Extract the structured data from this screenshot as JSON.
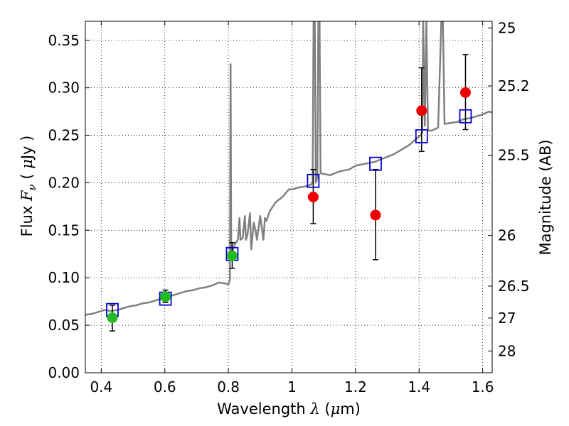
{
  "chart_data": {
    "type": "scatter",
    "title": "",
    "xlabel": {
      "prefix": "Wavelength  ",
      "symbol": "λ",
      "unit_open": " (",
      "unit_symbol": "μ",
      "unit_rest": "m)"
    },
    "ylabel": {
      "prefix": "Flux  ",
      "symbol": "F",
      "sub": "ν",
      "unit_open": " (  ",
      "unit_symbol": "μ",
      "unit_rest": "Jy  )"
    },
    "y2label": "Magnitude (AB)",
    "xlim": [
      0.35,
      1.63
    ],
    "ylim": [
      0.0,
      0.37
    ],
    "xticks": [
      0.4,
      0.6,
      0.8,
      1.0,
      1.2,
      1.4,
      1.6
    ],
    "xtick_labels": [
      "0.4",
      "0.6",
      "0.8",
      "1",
      "1.2",
      "1.4",
      "1.6"
    ],
    "yticks": [
      0.0,
      0.05,
      0.1,
      0.15,
      0.2,
      0.25,
      0.3,
      0.35
    ],
    "ytick_labels": [
      "0.00",
      "0.05",
      "0.10",
      "0.15",
      "0.20",
      "0.25",
      "0.30",
      "0.35"
    ],
    "y2ticks": [
      25,
      25.2,
      25.5,
      26,
      26.5,
      27,
      28
    ],
    "y2tick_labels": [
      "25",
      "25.2",
      "25.5",
      "26",
      "26.5",
      "27",
      "28"
    ],
    "grid": true,
    "colors": {
      "spectrum": "#808080",
      "model_box": "#0000cc",
      "green_points": "#22bb22",
      "red_points": "#ee0000",
      "errorbar": "#000000"
    },
    "series": [
      {
        "kind": "line",
        "spectrum": [
          [
            0.35,
            0.061
          ],
          [
            0.37,
            0.062
          ],
          [
            0.39,
            0.064
          ],
          [
            0.41,
            0.066
          ],
          [
            0.43,
            0.065
          ],
          [
            0.45,
            0.066
          ],
          [
            0.47,
            0.068
          ],
          [
            0.49,
            0.07
          ],
          [
            0.51,
            0.071
          ],
          [
            0.53,
            0.073
          ],
          [
            0.55,
            0.074
          ],
          [
            0.57,
            0.076
          ],
          [
            0.59,
            0.078
          ],
          [
            0.61,
            0.08
          ],
          [
            0.63,
            0.082
          ],
          [
            0.65,
            0.084
          ],
          [
            0.67,
            0.086
          ],
          [
            0.69,
            0.087
          ],
          [
            0.71,
            0.089
          ],
          [
            0.73,
            0.09
          ],
          [
            0.75,
            0.092
          ],
          [
            0.77,
            0.095
          ],
          [
            0.79,
            0.094
          ],
          [
            0.8,
            0.093
          ],
          [
            0.805,
            0.098
          ],
          [
            0.807,
            0.325
          ],
          [
            0.809,
            0.125
          ],
          [
            0.815,
            0.13
          ],
          [
            0.82,
            0.135
          ],
          [
            0.83,
            0.14
          ],
          [
            0.835,
            0.163
          ],
          [
            0.838,
            0.14
          ],
          [
            0.845,
            0.142
          ],
          [
            0.852,
            0.165
          ],
          [
            0.855,
            0.14
          ],
          [
            0.86,
            0.145
          ],
          [
            0.868,
            0.168
          ],
          [
            0.872,
            0.13
          ],
          [
            0.88,
            0.158
          ],
          [
            0.885,
            0.15
          ],
          [
            0.89,
            0.14
          ],
          [
            0.9,
            0.165
          ],
          [
            0.91,
            0.14
          ],
          [
            0.915,
            0.163
          ],
          [
            0.92,
            0.16
          ],
          [
            0.93,
            0.17
          ],
          [
            0.94,
            0.175
          ],
          [
            0.95,
            0.18
          ],
          [
            0.97,
            0.185
          ],
          [
            0.99,
            0.193
          ],
          [
            1.0,
            0.193
          ],
          [
            1.02,
            0.195
          ],
          [
            1.04,
            0.196
          ],
          [
            1.06,
            0.198
          ],
          [
            1.065,
            0.2
          ],
          [
            1.068,
            0.37
          ],
          [
            1.072,
            0.37
          ],
          [
            1.075,
            0.2
          ],
          [
            1.08,
            0.205
          ],
          [
            1.083,
            0.37
          ],
          [
            1.087,
            0.37
          ],
          [
            1.09,
            0.21
          ],
          [
            1.12,
            0.208
          ],
          [
            1.15,
            0.212
          ],
          [
            1.18,
            0.214
          ],
          [
            1.2,
            0.218
          ],
          [
            1.23,
            0.22
          ],
          [
            1.26,
            0.222
          ],
          [
            1.29,
            0.226
          ],
          [
            1.32,
            0.23
          ],
          [
            1.35,
            0.236
          ],
          [
            1.37,
            0.24
          ],
          [
            1.39,
            0.246
          ],
          [
            1.405,
            0.25
          ],
          [
            1.41,
            0.253
          ],
          [
            1.413,
            0.37
          ],
          [
            1.418,
            0.26
          ],
          [
            1.423,
            0.37
          ],
          [
            1.428,
            0.255
          ],
          [
            1.44,
            0.255
          ],
          [
            1.46,
            0.258
          ],
          [
            1.47,
            0.37
          ],
          [
            1.475,
            0.37
          ],
          [
            1.48,
            0.262
          ],
          [
            1.5,
            0.263
          ],
          [
            1.52,
            0.264
          ],
          [
            1.54,
            0.267
          ],
          [
            1.56,
            0.268
          ],
          [
            1.58,
            0.27
          ],
          [
            1.6,
            0.272
          ],
          [
            1.62,
            0.275
          ],
          [
            1.63,
            0.274
          ]
        ]
      },
      {
        "kind": "box",
        "points": [
          [
            0.435,
            0.066
          ],
          [
            0.602,
            0.078
          ],
          [
            0.812,
            0.125
          ],
          [
            1.067,
            0.202
          ],
          [
            1.263,
            0.22
          ],
          [
            1.408,
            0.249
          ],
          [
            1.546,
            0.27
          ]
        ]
      },
      {
        "kind": "errorbar_points",
        "color_key": "green_points",
        "points": [
          {
            "x": 0.435,
            "y": 0.058,
            "yerr_low": 0.044,
            "yerr_high": 0.071
          },
          {
            "x": 0.602,
            "y": 0.08,
            "yerr_low": 0.074,
            "yerr_high": 0.087
          },
          {
            "x": 0.812,
            "y": 0.123,
            "yerr_low": 0.11,
            "yerr_high": 0.137
          }
        ]
      },
      {
        "kind": "errorbar_points",
        "color_key": "red_points",
        "points": [
          {
            "x": 1.067,
            "y": 0.185,
            "yerr_low": 0.157,
            "yerr_high": 0.214
          },
          {
            "x": 1.263,
            "y": 0.166,
            "yerr_low": 0.119,
            "yerr_high": 0.214
          },
          {
            "x": 1.408,
            "y": 0.276,
            "yerr_low": 0.233,
            "yerr_high": 0.321
          },
          {
            "x": 1.546,
            "y": 0.295,
            "yerr_low": 0.256,
            "yerr_high": 0.335
          }
        ]
      }
    ]
  }
}
